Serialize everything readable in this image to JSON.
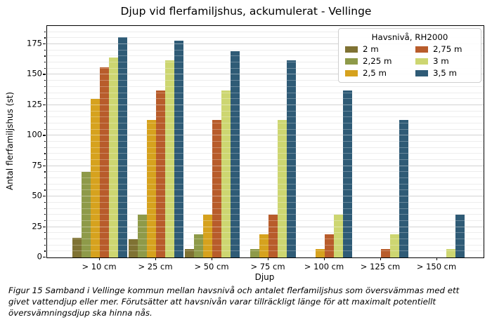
{
  "figure": {
    "caption": "Figur 15 Samband i Vellinge kommun mellan havsnivå och antalet flerfamiljshus som översvämmas med ett givet vattendjup eller mer. Förutsätter att havsnivån varar tillräckligt länge för att maximalt potentiellt översvämningsdjup ska hinna nås."
  },
  "chart_data": {
    "type": "bar",
    "title": "Djup vid flerfamiljshus, ackumulerat - Vellinge",
    "xlabel": "Djup",
    "ylabel": "Antal flerfamiljshus (st)",
    "categories": [
      "> 10 cm",
      "> 25 cm",
      "> 50 cm",
      "> 75 cm",
      "> 100 cm",
      "> 125 cm",
      "> 150 cm"
    ],
    "series": [
      {
        "name": "2 m",
        "color": "#7f7233",
        "values": [
          16,
          15,
          7,
          0,
          0,
          0,
          0
        ]
      },
      {
        "name": "2,25 m",
        "color": "#8e9a49",
        "values": [
          70,
          35,
          19,
          7,
          0,
          0,
          0
        ]
      },
      {
        "name": "2,5 m",
        "color": "#d6a21e",
        "values": [
          130,
          113,
          35,
          19,
          7,
          0,
          0
        ]
      },
      {
        "name": "2,75 m",
        "color": "#b85c2b",
        "values": [
          156,
          137,
          113,
          35,
          19,
          7,
          0
        ]
      },
      {
        "name": "3 m",
        "color": "#cdd671",
        "values": [
          164,
          162,
          137,
          113,
          35,
          19,
          7
        ]
      },
      {
        "name": "3,5 m",
        "color": "#2f5b76",
        "values": [
          181,
          178,
          169,
          162,
          137,
          113,
          35
        ]
      }
    ],
    "ylim": [
      0,
      190
    ],
    "yticks": [
      0,
      25,
      50,
      75,
      100,
      125,
      150,
      175
    ],
    "minor_grid_step": 5,
    "major_grid_step": 25,
    "grid": "horizontal",
    "legend": {
      "title": "Havsnivå, RH2000",
      "position": "upper-right",
      "ncol": 2
    }
  }
}
